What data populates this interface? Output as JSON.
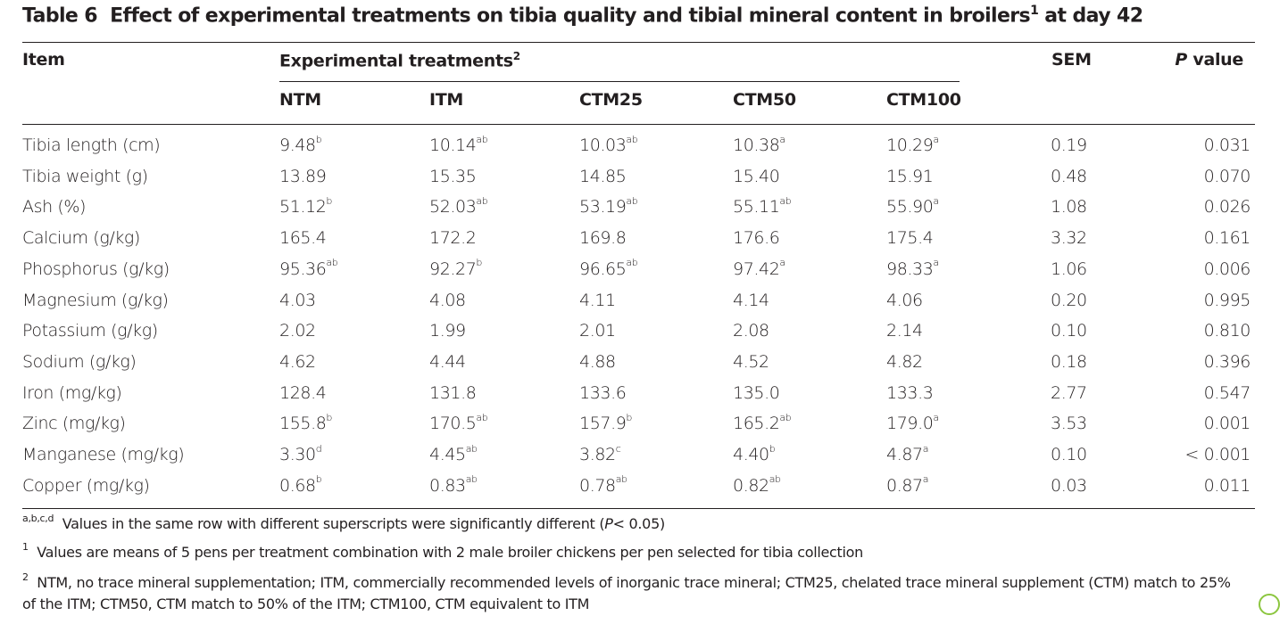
{
  "title": {
    "label": "Table 6",
    "text": "Effect of experimental treatments on tibia quality and tibial mineral content in broilers",
    "sup": "1",
    "suffix": " at day 42"
  },
  "header": {
    "item": "Item",
    "group": "Experimental treatments",
    "group_sup": "2",
    "sem": "SEM",
    "p_italic": "P",
    "p_rest": " value",
    "treatments": [
      "NTM",
      "ITM",
      "CTM25",
      "CTM50",
      "CTM100"
    ]
  },
  "rows": [
    {
      "item": "Tibia length (cm)",
      "cells": [
        [
          "9.48",
          "b"
        ],
        [
          "10.14",
          "ab"
        ],
        [
          "10.03",
          "ab"
        ],
        [
          "10.38",
          "a"
        ],
        [
          "10.29",
          "a"
        ]
      ],
      "sem": "0.19",
      "p": "0.031"
    },
    {
      "item": "Tibia weight (g)",
      "cells": [
        [
          "13.89",
          ""
        ],
        [
          "15.35",
          ""
        ],
        [
          "14.85",
          ""
        ],
        [
          "15.40",
          ""
        ],
        [
          "15.91",
          ""
        ]
      ],
      "sem": "0.48",
      "p": "0.070"
    },
    {
      "item": "Ash (%)",
      "cells": [
        [
          "51.12",
          "b"
        ],
        [
          "52.03",
          "ab"
        ],
        [
          "53.19",
          "ab"
        ],
        [
          "55.11",
          "ab"
        ],
        [
          "55.90",
          "a"
        ]
      ],
      "sem": "1.08",
      "p": "0.026"
    },
    {
      "item": "Calcium (g/kg)",
      "cells": [
        [
          "165.4",
          ""
        ],
        [
          "172.2",
          ""
        ],
        [
          "169.8",
          ""
        ],
        [
          "176.6",
          ""
        ],
        [
          "175.4",
          ""
        ]
      ],
      "sem": "3.32",
      "p": "0.161"
    },
    {
      "item": "Phosphorus (g/kg)",
      "cells": [
        [
          "95.36",
          "ab"
        ],
        [
          "92.27",
          "b"
        ],
        [
          "96.65",
          "ab"
        ],
        [
          "97.42",
          "a"
        ],
        [
          "98.33",
          "a"
        ]
      ],
      "sem": "1.06",
      "p": "0.006"
    },
    {
      "item": "Magnesium (g/kg)",
      "cells": [
        [
          "4.03",
          ""
        ],
        [
          "4.08",
          ""
        ],
        [
          "4.11",
          ""
        ],
        [
          "4.14",
          ""
        ],
        [
          "4.06",
          ""
        ]
      ],
      "sem": "0.20",
      "p": "0.995"
    },
    {
      "item": "Potassium (g/kg)",
      "cells": [
        [
          "2.02",
          ""
        ],
        [
          "1.99",
          ""
        ],
        [
          "2.01",
          ""
        ],
        [
          "2.08",
          ""
        ],
        [
          "2.14",
          ""
        ]
      ],
      "sem": "0.10",
      "p": "0.810"
    },
    {
      "item": "Sodium (g/kg)",
      "cells": [
        [
          "4.62",
          ""
        ],
        [
          "4.44",
          ""
        ],
        [
          "4.88",
          ""
        ],
        [
          "4.52",
          ""
        ],
        [
          "4.82",
          ""
        ]
      ],
      "sem": "0.18",
      "p": "0.396"
    },
    {
      "item": "Iron (mg/kg)",
      "cells": [
        [
          "128.4",
          ""
        ],
        [
          "131.8",
          ""
        ],
        [
          "133.6",
          ""
        ],
        [
          "135.0",
          ""
        ],
        [
          "133.3",
          ""
        ]
      ],
      "sem": "2.77",
      "p": "0.547"
    },
    {
      "item": "Zinc (mg/kg)",
      "cells": [
        [
          "155.8",
          "b"
        ],
        [
          "170.5",
          "ab"
        ],
        [
          "157.9",
          "b"
        ],
        [
          "165.2",
          "ab"
        ],
        [
          "179.0",
          "a"
        ]
      ],
      "sem": "3.53",
      "p": "0.001"
    },
    {
      "item": "Manganese (mg/kg)",
      "cells": [
        [
          "3.30",
          "d"
        ],
        [
          "4.45",
          "ab"
        ],
        [
          "3.82",
          "c"
        ],
        [
          "4.40",
          "b"
        ],
        [
          "4.87",
          "a"
        ]
      ],
      "sem": "0.10",
      "p": "< 0.001"
    },
    {
      "item": "Copper (mg/kg)",
      "cells": [
        [
          "0.68",
          "b"
        ],
        [
          "0.83",
          "ab"
        ],
        [
          "0.78",
          "ab"
        ],
        [
          "0.82",
          "ab"
        ],
        [
          "0.87",
          "a"
        ]
      ],
      "sem": "0.03",
      "p": "0.011"
    }
  ],
  "footnotes": {
    "f0_sup": "a,b,c,d",
    "f0_a": "Values in the same row with different superscripts were significantly different (",
    "f0_p": "P",
    "f0_b": "< 0.05)",
    "f1_sup": "1",
    "f1": "Values are means of 5 pens per treatment combination with 2 male broiler chickens per pen selected for tibia collection",
    "f2_sup": "2",
    "f2": "NTM, no trace mineral supplementation; ITM, commercially recommended levels of inorganic trace mineral; CTM25, chelated trace mineral supplement (CTM) match to 25% of the ITM; CTM50, CTM match to 50% of the ITM; CTM100, CTM equivalent to ITM"
  }
}
